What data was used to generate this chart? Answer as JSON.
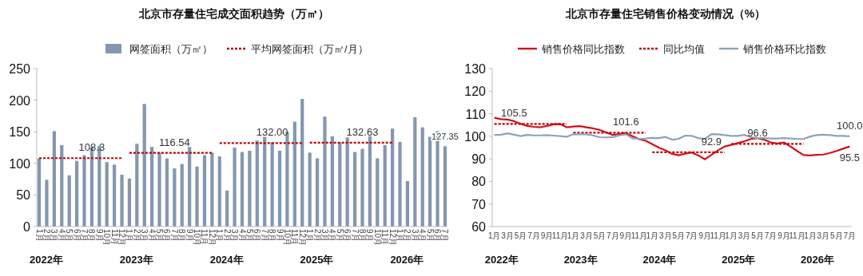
{
  "chart_data": [
    {
      "type": "bar",
      "title": "北京市存量住宅成交面积趋势（万㎡）",
      "categories": [
        "1月",
        "2月",
        "3月",
        "4月",
        "5月",
        "6月",
        "7月",
        "8月",
        "9月",
        "10月",
        "11月",
        "12月",
        "1月",
        "2月",
        "3月",
        "4月",
        "5月",
        "6月",
        "7月",
        "8月",
        "9月",
        "10月",
        "11月",
        "12月",
        "1月",
        "2月",
        "3月",
        "4月",
        "5月",
        "6月",
        "7月",
        "8月",
        "9月",
        "10月",
        "11月",
        "12月",
        "1月",
        "2月",
        "3月",
        "4月",
        "5月",
        "6月",
        "7月",
        "8月",
        "9月",
        "10月",
        "11月",
        "12月",
        "1月",
        "2月",
        "3月",
        "4月",
        "5月",
        "6月",
        "7月"
      ],
      "series": [
        {
          "name": "网签面积（万㎡）",
          "color": "#8497b0",
          "values": [
            108,
            74,
            151,
            129,
            81,
            104,
            113,
            125,
            128,
            102,
            98,
            82,
            76,
            131,
            194,
            126,
            117,
            108,
            92,
            99,
            126,
            95,
            113,
            117,
            111,
            57,
            125,
            118,
            120,
            136,
            142,
            133,
            120,
            150,
            166,
            202,
            117,
            108,
            174,
            143,
            133,
            141,
            118,
            123,
            143,
            108,
            129,
            155,
            134,
            72,
            173,
            157,
            142,
            151,
            127
          ]
        },
        {
          "name": "平均网签面积（万㎡/月）",
          "type": "line",
          "line_style": "dotted",
          "color": "#c00000",
          "values": [
            108.3,
            108.3,
            108.3,
            108.3,
            108.3,
            108.3,
            108.3,
            108.3,
            108.3,
            108.3,
            108.3,
            108.3,
            116.54,
            116.54,
            116.54,
            116.54,
            116.54,
            116.54,
            116.54,
            116.54,
            116.54,
            116.54,
            116.54,
            116.54,
            132,
            132,
            132,
            132,
            132,
            132,
            132,
            132,
            132,
            132,
            132,
            132,
            132.63,
            132.63,
            132.63,
            132.63,
            132.63,
            132.63,
            132.63,
            132.63,
            132.63,
            132.63,
            132.63,
            132.63,
            null,
            null,
            null,
            null,
            null,
            null,
            null
          ],
          "value_labels": [
            null,
            null,
            null,
            null,
            null,
            null,
            null,
            "108.3",
            null,
            null,
            null,
            null,
            null,
            null,
            null,
            null,
            null,
            null,
            "116.54",
            null,
            null,
            null,
            null,
            null,
            null,
            null,
            null,
            null,
            null,
            null,
            null,
            "132.00",
            null,
            null,
            null,
            null,
            null,
            null,
            null,
            null,
            null,
            null,
            null,
            "132.63",
            null,
            null,
            null,
            null,
            null,
            null,
            null,
            null,
            null,
            null,
            null
          ]
        }
      ],
      "ylim": [
        0,
        250
      ],
      "yticks": [
        0,
        50,
        100,
        150,
        200,
        250
      ],
      "legend": "top",
      "marker": "none",
      "annotations": [
        "2022年",
        "2023年",
        "2024年",
        "2025年",
        "2026年",
        {
          "text": "127.35",
          "y": 127.35
        }
      ]
    },
    {
      "type": "line",
      "title": "北京市存量住宅销售价格变动情况（%）",
      "categories": [
        "1月",
        null,
        "3月",
        null,
        "5月",
        null,
        "7月",
        null,
        "9月",
        null,
        "11月",
        null,
        "1月",
        null,
        "3月",
        null,
        "5月",
        null,
        "7月",
        null,
        "9月",
        null,
        "11月",
        null,
        "1月",
        null,
        "3月",
        null,
        "5月",
        null,
        "7月",
        null,
        "9月",
        null,
        "11月",
        null,
        "1月",
        null,
        "3月",
        null,
        "5月",
        null,
        "7月",
        null,
        "9月",
        null,
        "11月",
        null,
        "1月",
        null,
        "3月",
        null,
        "5月",
        null,
        "7月"
      ],
      "series": [
        {
          "name": "销售价格同比指数",
          "color": "#d0121b",
          "values": [
            108.2,
            107.6,
            107.4,
            106.7,
            105.5,
            104.6,
            104.2,
            104.0,
            104.6,
            105.3,
            105.4,
            104.0,
            104.3,
            104.5,
            104.0,
            103.5,
            102.8,
            101.7,
            100.6,
            101.0,
            101.4,
            100.0,
            98.7,
            98.0,
            96.5,
            95.0,
            93.8,
            92.2,
            91.6,
            92.3,
            92.8,
            91.5,
            89.8,
            91.8,
            93.8,
            95.5,
            96.2,
            97.0,
            97.8,
            98.8,
            99.2,
            98.5,
            97.3,
            96.8,
            97.3,
            95.5,
            93.5,
            91.7,
            91.5,
            91.8,
            91.9,
            92.6,
            93.5,
            94.5,
            95.5
          ],
          "value_labels": [
            null,
            null,
            null,
            null,
            null,
            null,
            null,
            null,
            null,
            null,
            null,
            null,
            null,
            null,
            null,
            null,
            null,
            null,
            null,
            null,
            null,
            null,
            null,
            null,
            null,
            null,
            null,
            null,
            null,
            null,
            null,
            null,
            null,
            null,
            null,
            null,
            null,
            null,
            null,
            null,
            null,
            null,
            null,
            null,
            null,
            null,
            null,
            null,
            null,
            null,
            null,
            null,
            null,
            null,
            "95.5"
          ]
        },
        {
          "name": "同比均值",
          "line_style": "dotted",
          "color": "#c00000",
          "values": [
            105.5,
            105.5,
            105.5,
            105.5,
            105.5,
            105.5,
            105.5,
            105.5,
            105.5,
            105.5,
            105.5,
            105.5,
            101.6,
            101.6,
            101.6,
            101.6,
            101.6,
            101.6,
            101.6,
            101.6,
            101.6,
            101.6,
            101.6,
            101.6,
            92.9,
            92.9,
            92.9,
            92.9,
            92.9,
            92.9,
            92.9,
            92.9,
            92.9,
            92.9,
            92.9,
            92.9,
            96.6,
            96.6,
            96.6,
            96.6,
            96.6,
            96.6,
            96.6,
            96.6,
            96.6,
            96.6,
            96.6,
            96.6,
            null,
            null,
            null,
            null,
            null,
            null,
            null
          ],
          "value_labels": [
            null,
            null,
            null,
            "105.5",
            null,
            null,
            null,
            null,
            null,
            null,
            null,
            null,
            null,
            null,
            null,
            null,
            null,
            null,
            null,
            null,
            "101.6",
            null,
            null,
            null,
            null,
            null,
            null,
            null,
            null,
            null,
            null,
            null,
            null,
            "92.9",
            null,
            null,
            null,
            null,
            null,
            null,
            "96.6",
            null,
            null,
            null,
            null,
            null,
            null,
            null,
            null,
            null,
            null,
            null,
            null,
            null,
            null
          ]
        },
        {
          "name": "销售价格环比指数",
          "color": "#8ea2bd",
          "values": [
            100.6,
            100.7,
            101.3,
            100.7,
            100.1,
            100.6,
            100.4,
            100.4,
            100.5,
            100.3,
            100.1,
            99.8,
            100.9,
            100.9,
            100.9,
            100.4,
            99.6,
            99.5,
            99.6,
            100.4,
            100.9,
            99.1,
            98.8,
            99.0,
            99.3,
            99.2,
            99.7,
            98.5,
            98.9,
            100.3,
            100.2,
            99.2,
            98.8,
            101.0,
            100.9,
            100.5,
            100.2,
            100.2,
            100.6,
            99.6,
            99.2,
            99.2,
            99.0,
            99.0,
            99.2,
            99.0,
            98.8,
            98.8,
            99.9,
            100.5,
            100.7,
            100.5,
            100.2,
            100.2,
            100.0
          ],
          "value_labels": [
            null,
            null,
            null,
            null,
            null,
            null,
            null,
            null,
            null,
            null,
            null,
            null,
            null,
            null,
            null,
            null,
            null,
            null,
            null,
            null,
            null,
            null,
            null,
            null,
            null,
            null,
            null,
            null,
            null,
            null,
            null,
            null,
            null,
            null,
            null,
            null,
            null,
            null,
            null,
            null,
            null,
            null,
            null,
            null,
            null,
            null,
            null,
            null,
            null,
            null,
            null,
            null,
            null,
            null,
            "100.0"
          ]
        }
      ],
      "ylim": [
        60,
        130
      ],
      "yticks": [
        60,
        70,
        80,
        90,
        100,
        110,
        120,
        130
      ],
      "legend": "top",
      "marker": "none",
      "annotations": [
        "2022年",
        "2023年",
        "2024年",
        "2025年",
        "2026年"
      ]
    }
  ]
}
